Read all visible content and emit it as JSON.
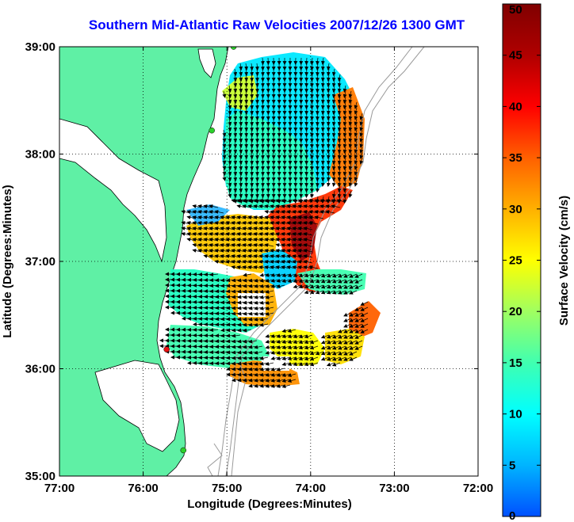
{
  "title": "Southern Mid-Atlantic Raw Velocities 2007/12/26 1300 GMT",
  "map": {
    "x_axis": {
      "label": "Longitude (Degrees:Minutes)",
      "range": [
        -77,
        -72
      ],
      "ticks": [
        {
          "value": -77,
          "label": "77:00"
        },
        {
          "value": -76,
          "label": "76:00"
        },
        {
          "value": -75,
          "label": "75:00"
        },
        {
          "value": -74,
          "label": "74:00"
        },
        {
          "value": -73,
          "label": "73:00"
        },
        {
          "value": -72,
          "label": "72:00"
        }
      ]
    },
    "y_axis": {
      "label": "Latitude (Degrees:Minutes)",
      "range": [
        35,
        39
      ],
      "ticks": [
        {
          "value": 39,
          "label": "39:00"
        },
        {
          "value": 38,
          "label": "38:00"
        },
        {
          "value": 37,
          "label": "37:00"
        },
        {
          "value": 36,
          "label": "36:00"
        },
        {
          "value": 35,
          "label": "35:00"
        }
      ]
    },
    "grid": "dotted",
    "land_color": "#5ff0a5",
    "stations": [
      {
        "lon": -74.92,
        "lat": 39.0,
        "color": "#2bd12b"
      },
      {
        "lon": -75.18,
        "lat": 38.22,
        "color": "#2bd12b"
      },
      {
        "lon": -75.72,
        "lat": 36.18,
        "color": "#e81010"
      },
      {
        "lon": -75.52,
        "lat": 35.24,
        "color": "#2bd12b"
      }
    ]
  },
  "colorbar": {
    "label": "Surface Velocity (cm/s)",
    "min": 0,
    "max": 50,
    "ticks": [
      {
        "value": 0,
        "label": "0"
      },
      {
        "value": 5,
        "label": "5"
      },
      {
        "value": 10,
        "label": "10"
      },
      {
        "value": 15,
        "label": "15"
      },
      {
        "value": 20,
        "label": "20"
      },
      {
        "value": 25,
        "label": "25"
      },
      {
        "value": 30,
        "label": "30"
      },
      {
        "value": 35,
        "label": "35"
      },
      {
        "value": 40,
        "label": "40"
      },
      {
        "value": 45,
        "label": "45"
      },
      {
        "value": 50,
        "label": "50"
      }
    ],
    "colors": [
      "#0050ff",
      "#00b4ff",
      "#00ffff",
      "#40ffb0",
      "#a0ff60",
      "#ffff00",
      "#ffb000",
      "#ff6000",
      "#ff0000",
      "#b00000",
      "#800000"
    ]
  }
}
